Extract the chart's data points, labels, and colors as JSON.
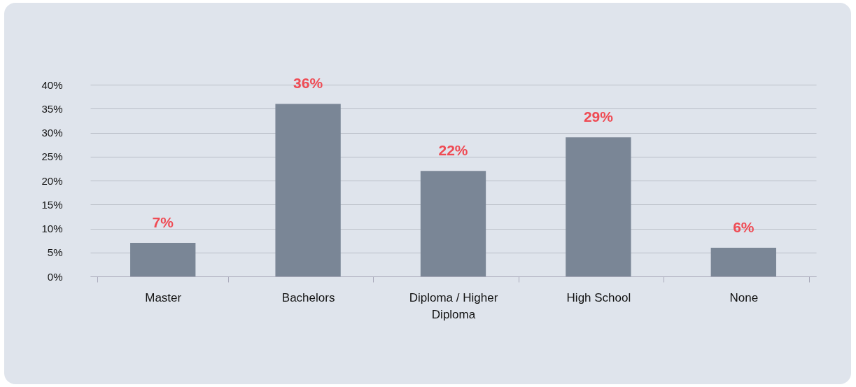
{
  "chart_data": {
    "type": "bar",
    "categories": [
      "Master",
      "Bachelors",
      "Diploma / Higher Diploma",
      "High School",
      "None"
    ],
    "values": [
      7,
      36,
      22,
      29,
      6
    ],
    "value_labels": [
      "7%",
      "36%",
      "22%",
      "29%",
      "6%"
    ],
    "color": "#7a8696",
    "ylim": [
      0,
      40
    ],
    "yticks": [
      {
        "value": 0,
        "label": "0%"
      },
      {
        "value": 5,
        "label": "5%"
      },
      {
        "value": 10,
        "label": "10%"
      },
      {
        "value": 15,
        "label": "15%"
      },
      {
        "value": 20,
        "label": "20%"
      },
      {
        "value": 25,
        "label": "25%"
      },
      {
        "value": 30,
        "label": "30%"
      },
      {
        "value": 35,
        "label": "35%"
      },
      {
        "value": 40,
        "label": "40%"
      }
    ],
    "grid": "y"
  }
}
